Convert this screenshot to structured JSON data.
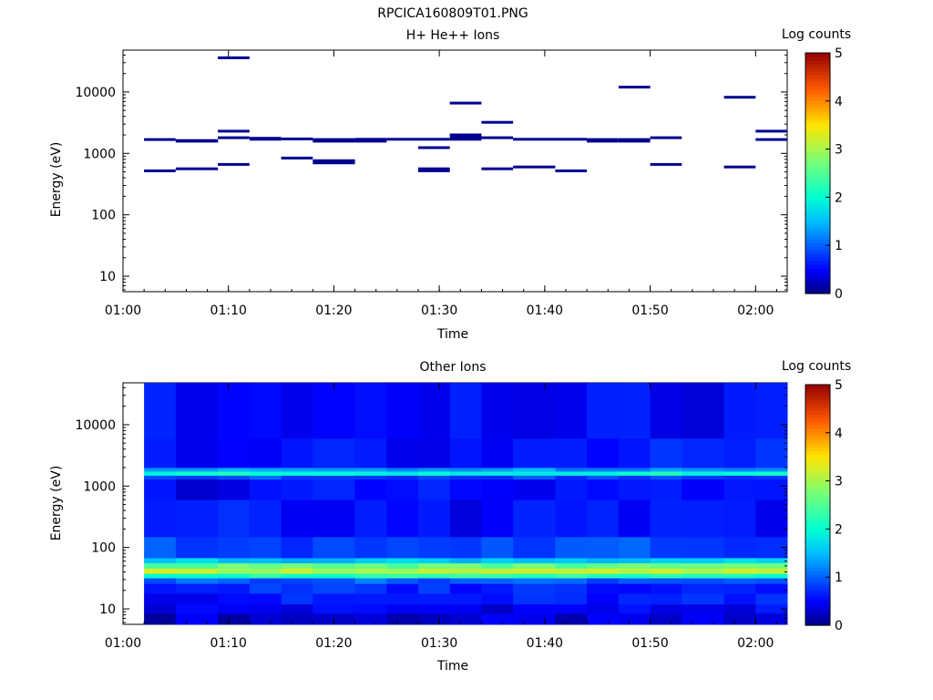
{
  "figure_title": "RPCICA160809T01.PNG",
  "chart_data": [
    {
      "type": "heatmap",
      "title": "H+ He++ Ions",
      "xlabel": "Time",
      "ylabel": "Energy (eV)",
      "x_ticks": [
        "01:00",
        "01:10",
        "01:20",
        "01:30",
        "01:40",
        "01:50",
        "02:00"
      ],
      "y_ticks": [
        "10",
        "100",
        "1000",
        "10000"
      ],
      "y_scale": "log",
      "ylim": [
        5.6,
        48000
      ],
      "xlim": [
        "01:00",
        "02:03"
      ],
      "colorbar": {
        "label": "Log counts",
        "ticks": [
          "0",
          "1",
          "2",
          "3",
          "4",
          "5"
        ],
        "range": [
          0,
          5
        ],
        "colormap": "rainbow"
      },
      "background": "#ffffff",
      "bin_color": "#000090",
      "bins": [
        {
          "t0": "01:02",
          "t1": "01:05",
          "energy_eV": [
            520,
            1680
          ]
        },
        {
          "t0": "01:05",
          "t1": "01:09",
          "energy_eV": [
            560,
            1580,
            1620
          ]
        },
        {
          "t0": "01:09",
          "t1": "01:12",
          "energy_eV": [
            660,
            1800,
            2300,
            36000
          ]
        },
        {
          "t0": "01:12",
          "t1": "01:15",
          "energy_eV": [
            1700,
            1760
          ]
        },
        {
          "t0": "01:15",
          "t1": "01:18",
          "energy_eV": [
            840,
            1720
          ]
        },
        {
          "t0": "01:18",
          "t1": "01:22",
          "energy_eV": [
            700,
            760,
            1580,
            1680
          ]
        },
        {
          "t0": "01:22",
          "t1": "01:25",
          "energy_eV": [
            1580,
            1700
          ]
        },
        {
          "t0": "01:25",
          "t1": "01:28",
          "energy_eV": [
            1700
          ]
        },
        {
          "t0": "01:28",
          "t1": "01:31",
          "energy_eV": [
            520,
            560,
            1240,
            1700
          ]
        },
        {
          "t0": "01:31",
          "t1": "01:34",
          "energy_eV": [
            1700,
            1860,
            2000,
            6600
          ]
        },
        {
          "t0": "01:34",
          "t1": "01:37",
          "energy_eV": [
            560,
            1800,
            3200
          ]
        },
        {
          "t0": "01:37",
          "t1": "01:41",
          "energy_eV": [
            600,
            1700
          ]
        },
        {
          "t0": "01:41",
          "t1": "01:44",
          "energy_eV": [
            520,
            1700
          ]
        },
        {
          "t0": "01:44",
          "t1": "01:47",
          "energy_eV": [
            1580,
            1680
          ]
        },
        {
          "t0": "01:47",
          "t1": "01:50",
          "energy_eV": [
            1580,
            1680,
            12000
          ]
        },
        {
          "t0": "01:50",
          "t1": "01:53",
          "energy_eV": [
            660,
            1800
          ]
        },
        {
          "t0": "01:57",
          "t1": "02:00",
          "energy_eV": [
            600,
            8200
          ]
        },
        {
          "t0": "02:00",
          "t1": "02:03",
          "energy_eV": [
            1680,
            2300
          ]
        }
      ]
    },
    {
      "type": "heatmap",
      "title": "Other Ions",
      "xlabel": "Time",
      "ylabel": "Energy (eV)",
      "x_ticks": [
        "01:00",
        "01:10",
        "01:20",
        "01:30",
        "01:40",
        "01:50",
        "02:00"
      ],
      "y_ticks": [
        "10",
        "100",
        "1000",
        "10000"
      ],
      "y_scale": "log",
      "ylim": [
        5.6,
        48000
      ],
      "xlim": [
        "01:00",
        "02:03"
      ],
      "colorbar": {
        "label": "Log counts",
        "ticks": [
          "0",
          "1",
          "2",
          "3",
          "4",
          "5"
        ],
        "range": [
          0,
          5
        ],
        "colormap": "rainbow"
      },
      "time_bins": [
        "01:02",
        "01:05",
        "01:09",
        "01:12",
        "01:15",
        "01:18",
        "01:22",
        "01:25",
        "01:28",
        "01:31",
        "01:34",
        "01:37",
        "01:41",
        "01:44",
        "01:47",
        "01:50",
        "01:53",
        "01:57",
        "02:00",
        "02:03"
      ],
      "energy_bands": [
        {
          "e_lo": 5.6,
          "e_hi": 8.5,
          "log_counts": 0.3
        },
        {
          "e_lo": 8.5,
          "e_hi": 12,
          "log_counts": 0.45
        },
        {
          "e_lo": 12,
          "e_hi": 18,
          "log_counts": 0.6
        },
        {
          "e_lo": 18,
          "e_hi": 26,
          "log_counts": 0.7
        },
        {
          "e_lo": 26,
          "e_hi": 32,
          "log_counts": 1.0
        },
        {
          "e_lo": 32,
          "e_hi": 38,
          "log_counts": 2.2
        },
        {
          "e_lo": 38,
          "e_hi": 46,
          "log_counts": 3.1
        },
        {
          "e_lo": 46,
          "e_hi": 56,
          "log_counts": 2.6
        },
        {
          "e_lo": 56,
          "e_hi": 68,
          "log_counts": 1.6
        },
        {
          "e_lo": 68,
          "e_hi": 150,
          "log_counts": 0.85
        },
        {
          "e_lo": 150,
          "e_hi": 600,
          "log_counts": 0.55
        },
        {
          "e_lo": 600,
          "e_hi": 1300,
          "log_counts": 0.5
        },
        {
          "e_lo": 1300,
          "e_hi": 1500,
          "log_counts": 0.9
        },
        {
          "e_lo": 1500,
          "e_hi": 1750,
          "log_counts": 2.0
        },
        {
          "e_lo": 1750,
          "e_hi": 2000,
          "log_counts": 1.3
        },
        {
          "e_lo": 2000,
          "e_hi": 6000,
          "log_counts": 0.6
        },
        {
          "e_lo": 6000,
          "e_hi": 48000,
          "log_counts": 0.5
        }
      ]
    }
  ]
}
